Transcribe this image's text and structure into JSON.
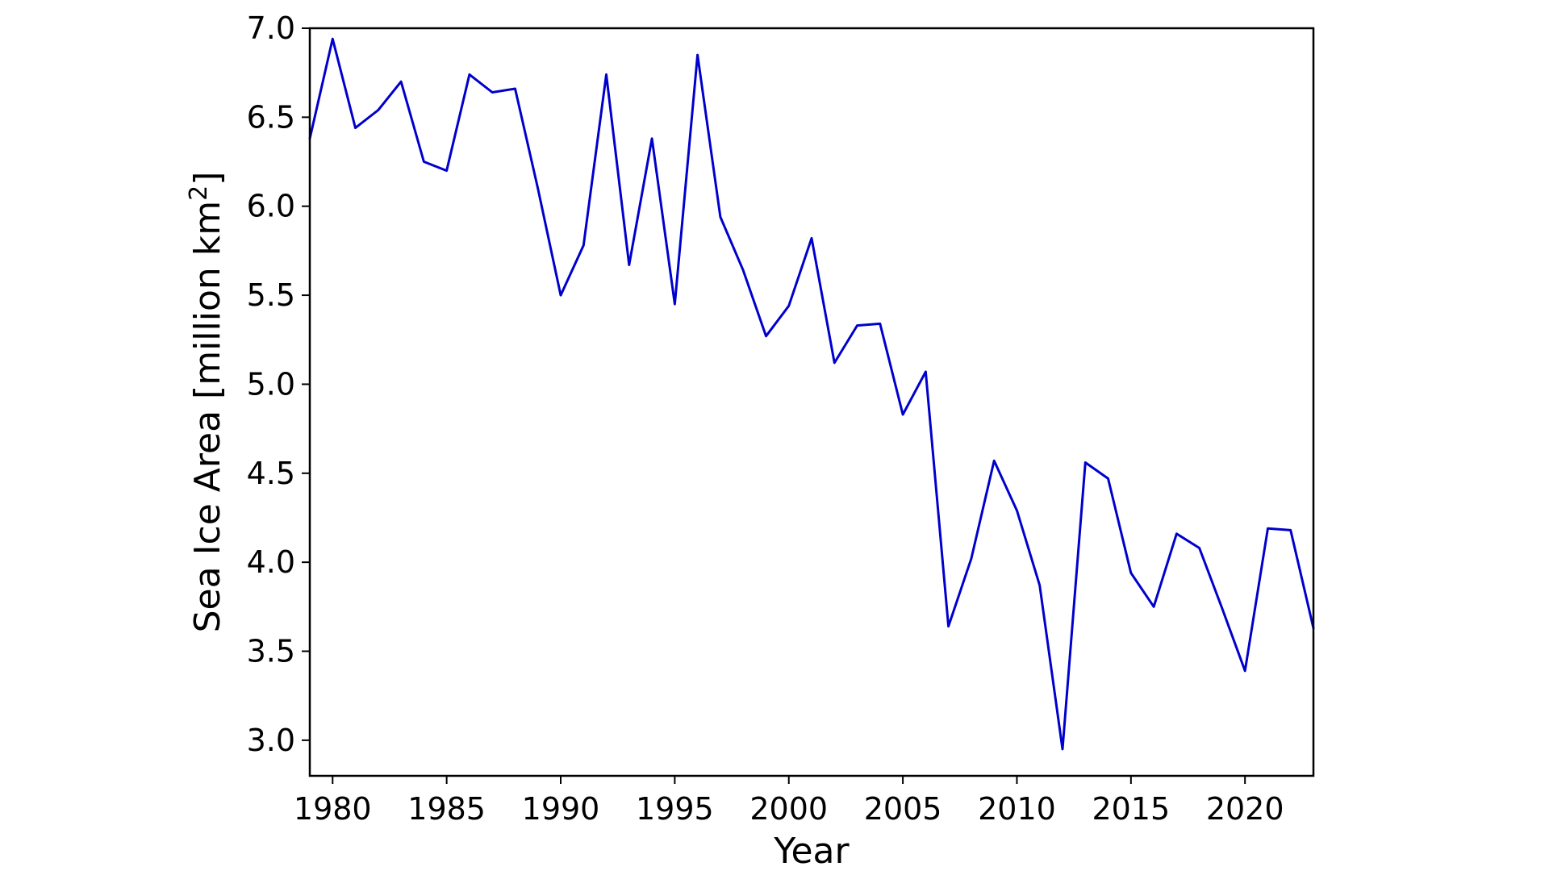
{
  "window": {
    "background": "#ffffff"
  },
  "chart_data": {
    "type": "line",
    "title": "",
    "xlabel": "Year",
    "ylabel": "Sea Ice Area [million km²]",
    "ylabel_parts": {
      "main": "Sea Ice Area [million km",
      "sup": "2",
      "close": "]"
    },
    "x": [
      1979,
      1980,
      1981,
      1982,
      1983,
      1984,
      1985,
      1986,
      1987,
      1988,
      1989,
      1990,
      1991,
      1992,
      1993,
      1994,
      1995,
      1996,
      1997,
      1998,
      1999,
      2000,
      2001,
      2002,
      2003,
      2004,
      2005,
      2006,
      2007,
      2008,
      2009,
      2010,
      2011,
      2012,
      2013,
      2014,
      2015,
      2016,
      2017,
      2018,
      2019,
      2020,
      2021,
      2022,
      2023
    ],
    "series": [
      {
        "name": "sea-ice-area",
        "color": "#0000CD",
        "values": [
          6.38,
          6.94,
          6.44,
          6.54,
          6.7,
          6.25,
          6.2,
          6.74,
          6.64,
          6.66,
          6.1,
          5.5,
          5.78,
          6.74,
          5.67,
          6.38,
          5.45,
          6.85,
          5.94,
          5.64,
          5.27,
          5.44,
          5.82,
          5.12,
          5.33,
          5.34,
          4.83,
          5.07,
          3.64,
          4.02,
          4.57,
          4.29,
          3.87,
          2.95,
          4.56,
          4.47,
          3.94,
          3.75,
          4.16,
          4.08,
          3.74,
          3.39,
          4.19,
          4.18,
          3.63
        ]
      }
    ],
    "xlim": [
      1979,
      2023
    ],
    "ylim": [
      2.8,
      7.0
    ],
    "xticks": [
      1980,
      1985,
      1990,
      1995,
      2000,
      2005,
      2010,
      2015,
      2020
    ],
    "yticks": [
      "3.0",
      "3.5",
      "4.0",
      "4.5",
      "5.0",
      "5.5",
      "6.0",
      "6.5",
      "7.0"
    ],
    "grid": false,
    "legend": "none",
    "axis_color": "#000000"
  }
}
